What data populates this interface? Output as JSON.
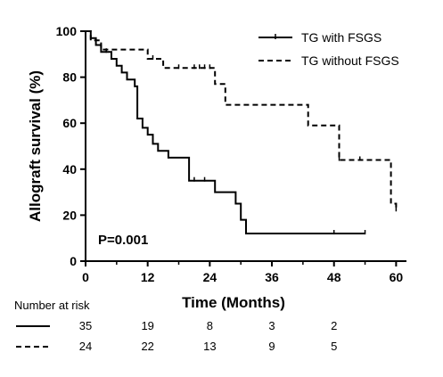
{
  "chart_data": {
    "type": "line",
    "subtype": "kaplan-meier-step",
    "title": "",
    "xlabel": "Time (Months)",
    "ylabel": "Allograft survival (%)",
    "xlim": [
      0,
      62
    ],
    "ylim": [
      0,
      100
    ],
    "xticks": [
      0,
      12,
      24,
      36,
      48,
      60
    ],
    "yticks": [
      0,
      20,
      40,
      60,
      80,
      100
    ],
    "grid": false,
    "legend_position": "top-right",
    "annotation": "P=0.001",
    "series": [
      {
        "name": "TG with FSGS",
        "dash": "solid",
        "steps": [
          [
            0,
            100
          ],
          [
            1,
            97
          ],
          [
            2,
            94
          ],
          [
            3,
            91
          ],
          [
            5,
            88
          ],
          [
            6,
            85
          ],
          [
            7,
            82
          ],
          [
            8,
            79
          ],
          [
            9.5,
            76
          ],
          [
            10,
            62
          ],
          [
            11,
            58
          ],
          [
            12,
            55
          ],
          [
            13,
            51
          ],
          [
            14,
            48
          ],
          [
            16,
            45
          ],
          [
            20,
            35
          ],
          [
            25,
            30
          ],
          [
            29,
            25
          ],
          [
            30,
            18
          ],
          [
            31,
            12
          ],
          [
            54,
            12
          ]
        ],
        "censors": [
          [
            4,
            91
          ],
          [
            21,
            35
          ],
          [
            23,
            35
          ],
          [
            48,
            12
          ],
          [
            54,
            12
          ]
        ]
      },
      {
        "name": "TG without FSGS",
        "dash": "dashed",
        "steps": [
          [
            0,
            100
          ],
          [
            1,
            96
          ],
          [
            3,
            92
          ],
          [
            12,
            88
          ],
          [
            15,
            84
          ],
          [
            20,
            84
          ],
          [
            25,
            77
          ],
          [
            27,
            68
          ],
          [
            43,
            59
          ],
          [
            49,
            44
          ],
          [
            59,
            25
          ],
          [
            60,
            22
          ]
        ],
        "censors": [
          [
            13,
            88
          ],
          [
            18,
            84
          ],
          [
            21,
            84
          ],
          [
            22,
            84
          ],
          [
            23,
            84
          ],
          [
            24,
            84
          ],
          [
            49,
            44
          ],
          [
            53,
            44
          ],
          [
            60,
            22
          ]
        ]
      }
    ],
    "risk_table": {
      "title": "Number at risk",
      "times": [
        0,
        12,
        24,
        36,
        48
      ],
      "rows": [
        {
          "series": "TG with FSGS",
          "dash": "solid",
          "counts": [
            "35",
            "19",
            "8",
            "3",
            "2"
          ]
        },
        {
          "series": "TG without FSGS",
          "dash": "dashed",
          "counts": [
            "24",
            "22",
            "13",
            "9",
            "5"
          ]
        }
      ]
    }
  }
}
